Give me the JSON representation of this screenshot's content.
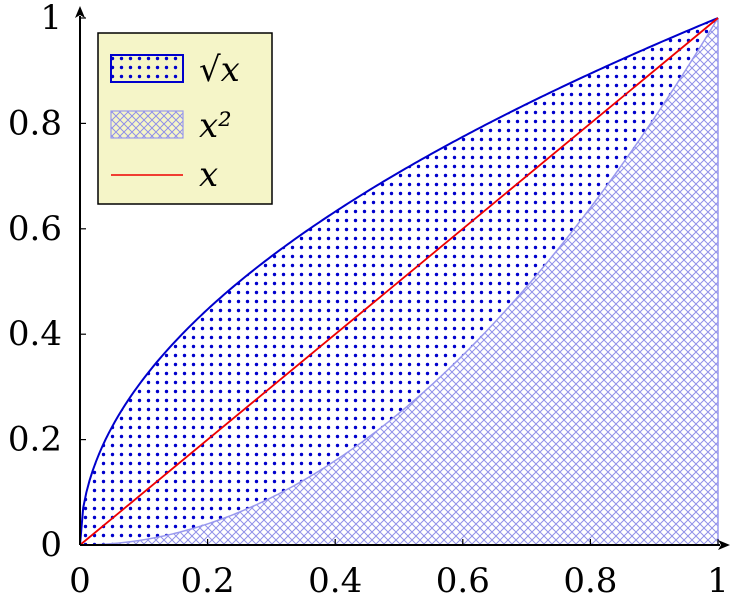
{
  "chart_data": {
    "type": "area",
    "xlim": [
      0,
      1
    ],
    "ylim": [
      0,
      1
    ],
    "x_ticks": [
      "0",
      "0.2",
      "0.4",
      "0.6",
      "0.8",
      "1"
    ],
    "y_ticks": [
      "0",
      "0.2",
      "0.4",
      "0.6",
      "0.8",
      "1"
    ],
    "grid": false,
    "legend_position": "top-left",
    "series": [
      {
        "name": "√x",
        "function": "sqrt",
        "style": "dotted fill",
        "color": "#0000cc",
        "x": [
          0,
          0.1,
          0.2,
          0.3,
          0.4,
          0.5,
          0.6,
          0.7,
          0.8,
          0.9,
          1
        ],
        "y": [
          0,
          0.316,
          0.447,
          0.548,
          0.632,
          0.707,
          0.775,
          0.837,
          0.894,
          0.949,
          1
        ]
      },
      {
        "name": "x²",
        "function": "square",
        "style": "crosshatch fill",
        "color": "#9999ee",
        "x": [
          0,
          0.1,
          0.2,
          0.3,
          0.4,
          0.5,
          0.6,
          0.7,
          0.8,
          0.9,
          1
        ],
        "y": [
          0,
          0.01,
          0.04,
          0.09,
          0.16,
          0.25,
          0.36,
          0.49,
          0.64,
          0.81,
          1
        ]
      },
      {
        "name": "x",
        "function": "identity",
        "style": "line",
        "color": "#ee0000",
        "x": [
          0,
          1
        ],
        "y": [
          0,
          1
        ]
      }
    ],
    "legend_background": "#f5f5c8"
  }
}
